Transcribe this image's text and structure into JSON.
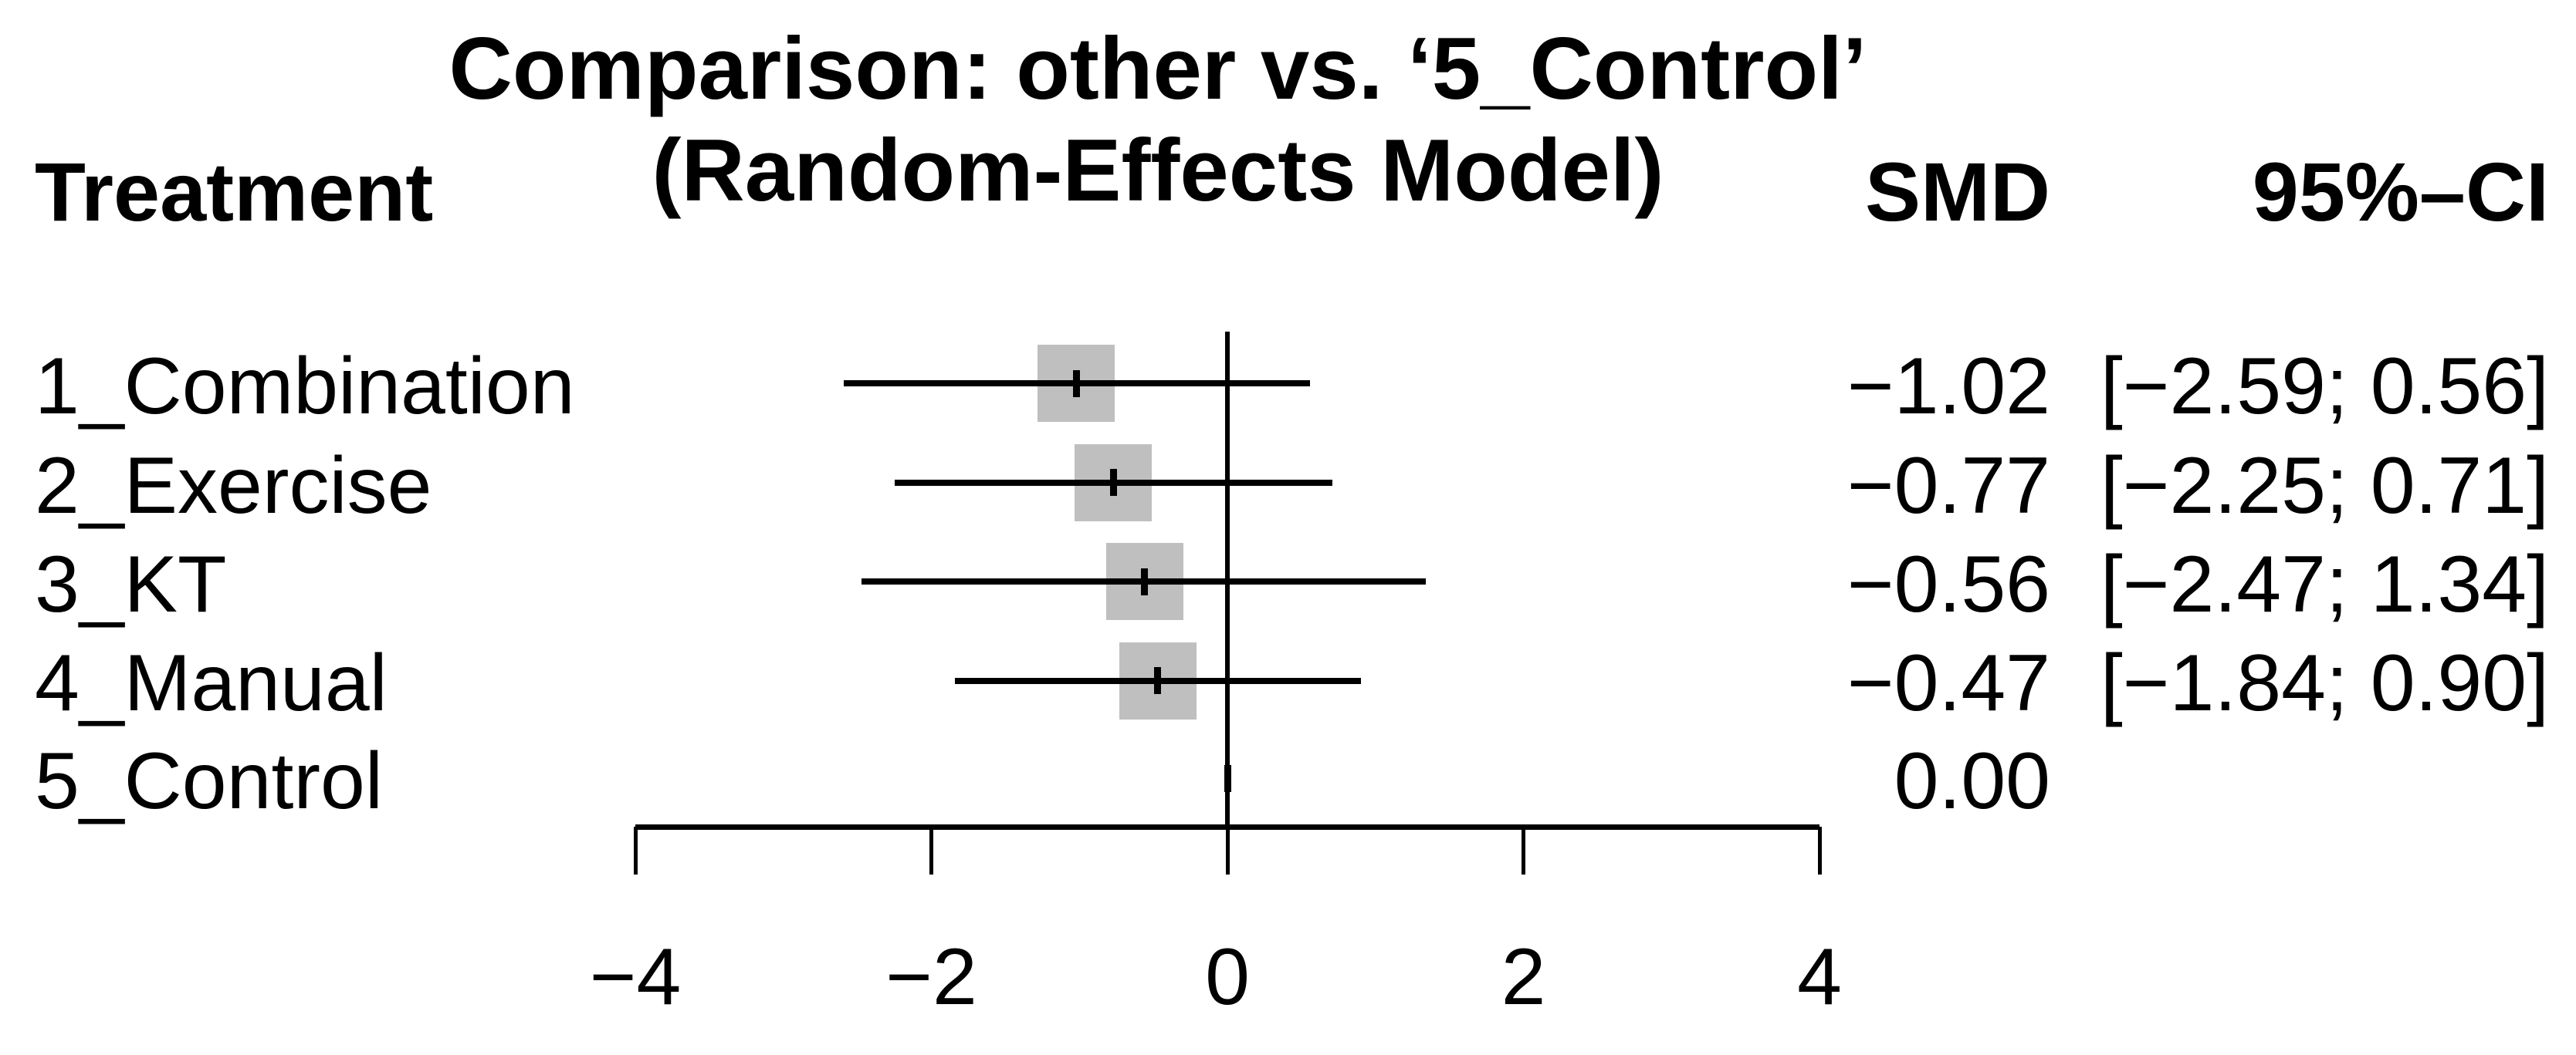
{
  "title": {
    "line1": "Comparison: other vs. ‘5_Control’",
    "line2": "(Random-Effects Model)"
  },
  "headers": {
    "treatment": "Treatment",
    "smd": "SMD",
    "ci": "95%–CI"
  },
  "rows": [
    {
      "label": "1_Combination",
      "smd": "−1.02",
      "ci": "[−2.59; 0.56]"
    },
    {
      "label": "2_Exercise",
      "smd": "−0.77",
      "ci": "[−2.25; 0.71]"
    },
    {
      "label": "3_KT",
      "smd": "−0.56",
      "ci": "[−2.47; 1.34]"
    },
    {
      "label": "4_Manual",
      "smd": "−0.47",
      "ci": "[−1.84; 0.90]"
    },
    {
      "label": "5_Control",
      "smd": "0.00",
      "ci": ""
    }
  ],
  "axis": {
    "tick_labels": [
      "−4",
      "−2",
      "0",
      "2",
      "4"
    ]
  },
  "colors": {
    "square": "#bfbfbf",
    "line": "#000000",
    "text": "#000000",
    "background": "#ffffff"
  },
  "chart_data": {
    "type": "scatter",
    "subtype": "forest-plot",
    "title": "Comparison: other vs. ‘5_Control’ (Random-Effects Model)",
    "effect_measure": "SMD",
    "reference_treatment": "5_Control",
    "categories": [
      "1_Combination",
      "2_Exercise",
      "3_KT",
      "4_Manual",
      "5_Control"
    ],
    "estimates": [
      -1.02,
      -0.77,
      -0.56,
      -0.47,
      0.0
    ],
    "ci_lower": [
      -2.59,
      -2.25,
      -2.47,
      -1.84,
      null
    ],
    "ci_upper": [
      0.56,
      0.71,
      1.34,
      0.9,
      null
    ],
    "xlabel": "",
    "xlim": [
      -4,
      4
    ],
    "x_ticks": [
      -4,
      -2,
      0,
      2,
      4
    ],
    "zero_line": 0,
    "grid": false,
    "legend": false
  }
}
